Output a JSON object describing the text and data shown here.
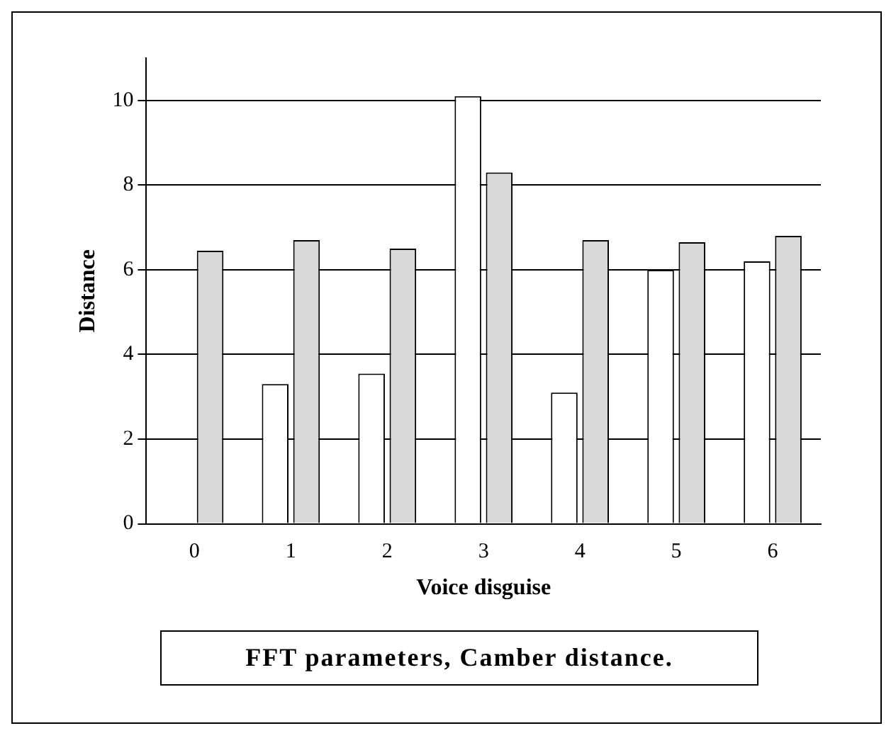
{
  "chart_data": {
    "type": "bar",
    "title": "FFT parameters, Camber distance.",
    "xlabel": "Voice disguise",
    "ylabel": "Distance",
    "categories": [
      "0",
      "1",
      "2",
      "3",
      "4",
      "5",
      "6"
    ],
    "series": [
      {
        "color": "#ffffff",
        "values": [
          0,
          3.3,
          3.55,
          10.1,
          3.1,
          6.0,
          6.2
        ]
      },
      {
        "color": "#d9d9d9",
        "values": [
          6.45,
          6.7,
          6.5,
          8.3,
          6.7,
          6.65,
          6.8
        ]
      }
    ],
    "ylim": [
      0,
      11
    ],
    "yticks": [
      0,
      2,
      4,
      6,
      8,
      10
    ],
    "grid": "y"
  }
}
